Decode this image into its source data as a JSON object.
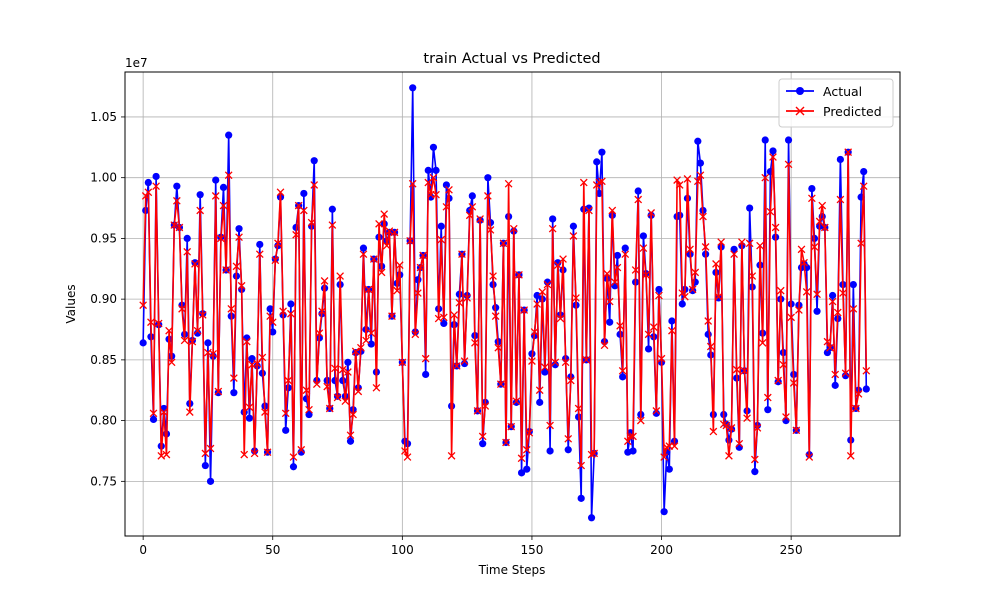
{
  "chart_data": {
    "type": "line",
    "title": "train Actual vs Predicted",
    "xlabel": "Time Steps",
    "ylabel": "Values",
    "y_multiplier": "1e7",
    "xlim": [
      -7,
      292
    ],
    "ylim": [
      7.05,
      10.87
    ],
    "x_ticks": [
      "0",
      "50",
      "100",
      "150",
      "200",
      "250"
    ],
    "x_tick_values": [
      0,
      50,
      100,
      150,
      200,
      250
    ],
    "y_ticks": [
      "0.75",
      "0.80",
      "0.85",
      "0.90",
      "0.95",
      "1.00",
      "1.05"
    ],
    "y_tick_values": [
      7.5,
      8.0,
      8.5,
      9.0,
      9.5,
      10.0,
      10.5
    ],
    "grid": true,
    "legend_position": "top-right",
    "series": [
      {
        "name": "Actual",
        "color": "#0000ff",
        "marker": "circle",
        "values": [
          8.64,
          9.73,
          9.96,
          8.69,
          8.01,
          10.01,
          8.79,
          7.79,
          8.1,
          7.89,
          8.67,
          8.53,
          9.61,
          9.93,
          9.59,
          8.95,
          8.71,
          9.5,
          8.14,
          8.66,
          9.3,
          8.72,
          9.86,
          8.88,
          7.63,
          8.64,
          7.5,
          8.53,
          9.98,
          8.23,
          9.51,
          9.92,
          9.24,
          10.35,
          8.86,
          8.23,
          9.19,
          9.58,
          9.08,
          8.07,
          8.68,
          8.02,
          8.51,
          7.75,
          8.45,
          9.45,
          8.39,
          8.12,
          7.74,
          8.92,
          8.73,
          9.33,
          9.44,
          9.84,
          8.87,
          7.92,
          8.27,
          8.96,
          7.62,
          9.59,
          9.77,
          7.74,
          9.87,
          8.18,
          8.05,
          9.6,
          10.14,
          8.33,
          8.68,
          8.88,
          9.09,
          8.33,
          8.1,
          9.74,
          8.33,
          8.2,
          9.12,
          8.33,
          8.2,
          8.48,
          7.83,
          8.09,
          8.56,
          8.27,
          8.57,
          9.42,
          8.75,
          9.08,
          8.63,
          9.33,
          8.4,
          9.51,
          9.27,
          9.62,
          9.48,
          9.55,
          8.86,
          9.55,
          9.13,
          9.2,
          8.48,
          7.83,
          7.81,
          9.48,
          10.74,
          8.73,
          9.16,
          9.26,
          9.36,
          8.38,
          10.06,
          9.84,
          10.25,
          10.06,
          8.92,
          9.6,
          8.8,
          9.94,
          9.83,
          8.12,
          8.79,
          8.45,
          9.04,
          9.37,
          8.47,
          9.03,
          9.73,
          9.85,
          8.7,
          8.08,
          9.65,
          7.81,
          8.15,
          10.0,
          9.63,
          9.12,
          8.93,
          8.65,
          8.3,
          9.46,
          7.82,
          9.68,
          7.95,
          9.56,
          8.15,
          9.2,
          7.57,
          8.91,
          7.6,
          7.91,
          8.55,
          8.7,
          9.03,
          8.15,
          9.0,
          8.4,
          9.14,
          7.75,
          9.66,
          8.46,
          9.3,
          8.87,
          9.24,
          8.51,
          7.76,
          8.36,
          9.6,
          8.95,
          8.03,
          7.36,
          9.74,
          8.5,
          9.75,
          7.2,
          7.73,
          10.13,
          9.87,
          10.21,
          8.65,
          9.17,
          8.81,
          9.69,
          9.11,
          9.36,
          8.71,
          8.36,
          9.42,
          7.74,
          7.9,
          7.75,
          9.14,
          9.89,
          8.05,
          9.52,
          9.21,
          8.59,
          9.69,
          8.69,
          8.06,
          9.08,
          8.48,
          7.25,
          7.74,
          7.6,
          8.82,
          7.83,
          9.68,
          9.69,
          8.96,
          9.08,
          9.83,
          9.37,
          9.07,
          9.14,
          10.3,
          10.12,
          9.73,
          9.37,
          8.71,
          8.54,
          8.05,
          9.22,
          9.01,
          9.43,
          8.05,
          7.97,
          7.84,
          7.93,
          9.41,
          8.35,
          7.78,
          9.44,
          8.41,
          8.08,
          9.75,
          9.1,
          7.58,
          7.96,
          9.28,
          8.72,
          10.31,
          8.09,
          10.05,
          10.22,
          9.51,
          8.32,
          9.0,
          8.56,
          8.0,
          10.31,
          8.96,
          8.38,
          7.92,
          8.95,
          9.26,
          9.29,
          9.26,
          7.72,
          9.91,
          9.5,
          8.9,
          9.6,
          9.68,
          9.59,
          8.56,
          8.6,
          9.03,
          8.29,
          8.84,
          10.15,
          9.12,
          8.37,
          10.21,
          7.84,
          9.12,
          8.1,
          8.25,
          9.84,
          10.05,
          8.26
        ]
      },
      {
        "name": "Predicted",
        "color": "#ff0000",
        "marker": "x",
        "values": [
          8.95,
          9.85,
          9.88,
          8.81,
          8.06,
          9.93,
          8.8,
          7.71,
          8.07,
          7.72,
          8.74,
          8.48,
          9.61,
          9.81,
          9.59,
          8.92,
          8.66,
          9.39,
          8.07,
          8.65,
          9.29,
          8.74,
          9.73,
          8.87,
          7.73,
          8.56,
          7.77,
          8.55,
          9.85,
          8.24,
          9.5,
          9.77,
          9.24,
          10.02,
          8.92,
          8.35,
          9.27,
          9.51,
          9.11,
          7.72,
          8.65,
          8.11,
          8.46,
          7.73,
          8.47,
          9.37,
          8.52,
          8.07,
          7.74,
          8.86,
          8.81,
          9.32,
          9.46,
          9.88,
          8.9,
          8.06,
          8.33,
          8.88,
          7.7,
          9.53,
          9.77,
          7.76,
          9.73,
          8.25,
          8.09,
          9.63,
          9.94,
          8.3,
          8.72,
          8.9,
          9.15,
          8.28,
          8.1,
          9.61,
          8.43,
          8.19,
          9.19,
          8.42,
          8.16,
          8.4,
          7.88,
          8.05,
          8.57,
          8.24,
          8.6,
          9.37,
          8.66,
          9.08,
          8.72,
          9.33,
          8.27,
          9.62,
          9.22,
          9.7,
          9.44,
          9.56,
          8.86,
          9.55,
          9.07,
          9.28,
          8.48,
          7.75,
          7.7,
          9.48,
          9.95,
          8.71,
          9.05,
          9.26,
          9.36,
          8.51,
          9.96,
          9.86,
          10.0,
          9.86,
          8.84,
          9.49,
          8.85,
          9.76,
          9.9,
          7.71,
          8.87,
          8.45,
          8.97,
          9.37,
          8.49,
          9.01,
          9.69,
          9.76,
          8.64,
          8.08,
          9.66,
          7.87,
          8.12,
          9.85,
          9.57,
          9.19,
          8.86,
          8.6,
          8.3,
          9.46,
          7.82,
          9.95,
          7.95,
          9.58,
          8.16,
          9.2,
          7.69,
          8.91,
          7.76,
          7.9,
          8.49,
          8.73,
          8.96,
          8.25,
          9.06,
          8.44,
          9.12,
          7.96,
          9.58,
          8.48,
          9.28,
          8.84,
          9.33,
          8.48,
          7.85,
          8.33,
          9.52,
          9.01,
          8.1,
          7.63,
          9.96,
          8.5,
          9.73,
          7.72,
          7.73,
          9.94,
          9.96,
          9.97,
          8.62,
          9.21,
          8.98,
          9.73,
          9.14,
          9.26,
          8.78,
          8.41,
          9.37,
          7.83,
          7.87,
          7.87,
          9.24,
          9.82,
          8.0,
          9.42,
          9.2,
          8.71,
          9.71,
          8.77,
          8.08,
          9.03,
          8.51,
          7.7,
          7.78,
          7.79,
          8.74,
          7.79,
          9.98,
          9.94,
          9.05,
          9.02,
          9.99,
          9.41,
          9.08,
          9.22,
          9.97,
          10.02,
          9.68,
          9.43,
          8.82,
          8.61,
          7.91,
          9.29,
          9.02,
          9.47,
          7.97,
          7.96,
          7.71,
          7.94,
          9.37,
          8.42,
          7.81,
          9.47,
          8.41,
          8.02,
          9.46,
          9.19,
          7.68,
          7.94,
          9.44,
          8.64,
          10.0,
          8.19,
          9.72,
          10.17,
          9.59,
          8.33,
          9.07,
          8.46,
          8.03,
          10.11,
          8.85,
          8.31,
          7.92,
          8.91,
          9.41,
          9.3,
          9.06,
          7.7,
          9.83,
          9.43,
          9.04,
          9.64,
          9.77,
          9.59,
          8.65,
          8.6,
          8.98,
          8.38,
          8.89,
          9.82,
          9.05,
          8.39,
          10.21,
          7.71,
          8.92,
          8.1,
          8.22,
          9.46,
          9.93,
          8.41
        ]
      }
    ]
  }
}
